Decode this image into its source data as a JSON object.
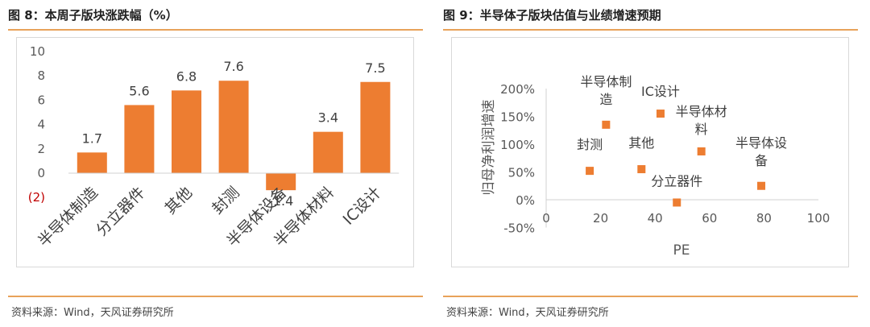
{
  "left_panel": {
    "title": "图 8：本周子版块涨跌幅（%）",
    "source": "资料来源：Wind，天风证券研究所"
  },
  "right_panel": {
    "title": "图 9：半导体子版块估值与业绩增速预期",
    "source": "资料来源：Wind，天风证券研究所"
  },
  "colors": {
    "accent": "#e8a25a",
    "bar": "#ed7d31",
    "negative_tick": "#c00000"
  },
  "chart_data": [
    {
      "type": "bar",
      "categories": [
        "半导体制造",
        "分立器件",
        "其他",
        "封测",
        "半导体设备",
        "半导体材料",
        "IC设计"
      ],
      "values": [
        1.7,
        5.6,
        6.8,
        7.6,
        -1.4,
        3.4,
        7.5
      ],
      "data_labels": [
        "1.7",
        "5.6",
        "6.8",
        "7.6",
        "-1.4",
        "3.4",
        "7.5"
      ],
      "ylim": [
        -2,
        10
      ],
      "yticks": [
        -2,
        0,
        2,
        4,
        6,
        8,
        10
      ],
      "ytick_labels": [
        "(2)",
        "0",
        "2",
        "4",
        "6",
        "8",
        "10"
      ],
      "grid": false,
      "title": "",
      "xlabel": "",
      "ylabel": ""
    },
    {
      "type": "scatter",
      "xlabel": "PE",
      "ylabel": "归母净利润增速",
      "xlim": [
        0,
        100
      ],
      "ylim": [
        -50,
        200
      ],
      "xticks": [
        0,
        20,
        40,
        60,
        80,
        100
      ],
      "xtick_labels": [
        "0",
        "20",
        "40",
        "60",
        "80",
        "100"
      ],
      "yticks": [
        -50,
        0,
        50,
        100,
        150,
        200
      ],
      "ytick_labels": [
        "-50%",
        "0%",
        "50%",
        "100%",
        "150%",
        "200%"
      ],
      "grid": false,
      "points": [
        {
          "label": [
            "半导体制",
            "造"
          ],
          "x": 22,
          "y": 135
        },
        {
          "label": [
            "IC设计"
          ],
          "x": 42,
          "y": 155
        },
        {
          "label": [
            "半导体材",
            "料"
          ],
          "x": 57,
          "y": 87
        },
        {
          "label": [
            "封测"
          ],
          "x": 16,
          "y": 52
        },
        {
          "label": [
            "其他"
          ],
          "x": 35,
          "y": 55
        },
        {
          "label": [
            "半导体设",
            "备"
          ],
          "x": 79,
          "y": 25
        },
        {
          "label": [
            "分立器件"
          ],
          "x": 48,
          "y": -5
        }
      ]
    }
  ]
}
